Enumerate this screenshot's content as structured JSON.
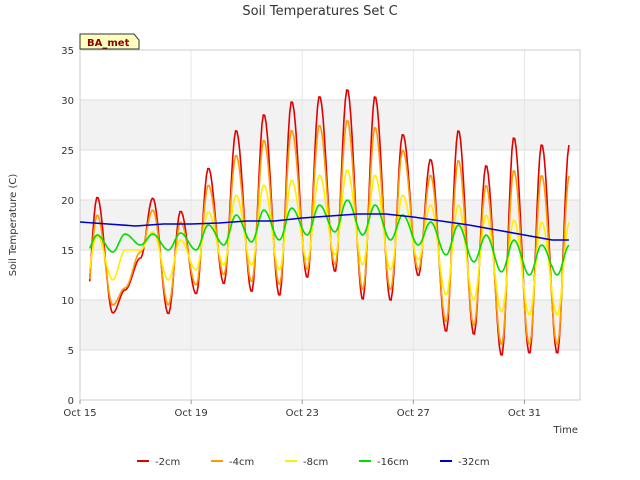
{
  "chart_data": {
    "type": "line",
    "title": "Soil Temperatures Set C",
    "xlabel": "Time",
    "ylabel": "Soil Temperature (C)",
    "ylim": [
      0,
      35
    ],
    "yticks": [
      "0",
      "5",
      "10",
      "15",
      "20",
      "25",
      "30",
      "35"
    ],
    "xlim_days": [
      0,
      18
    ],
    "xticks": [
      {
        "label": "Oct 15",
        "day": 0
      },
      {
        "label": "Oct 19",
        "day": 4
      },
      {
        "label": "Oct 23",
        "day": 8
      },
      {
        "label": "Oct 27",
        "day": 12
      },
      {
        "label": "Oct 31",
        "day": 16
      }
    ],
    "grid": true,
    "alternating_bands": true,
    "legend_position": "bottom",
    "site_badge": "BA_met",
    "series": [
      {
        "name": "-2cm",
        "color": "#e00000",
        "daily_max": [
          20.3,
          11.0,
          20.2,
          18.9,
          23.2,
          27.0,
          28.6,
          29.9,
          30.4,
          31.1,
          30.4,
          26.6,
          24.1,
          27.0,
          23.5,
          26.3,
          25.6
        ],
        "daily_min": [
          7.8,
          8.7,
          14.2,
          8.6,
          10.6,
          11.6,
          10.8,
          10.4,
          12.2,
          12.8,
          10.0,
          9.9,
          12.4,
          6.8,
          6.5,
          4.4,
          4.6
        ]
      },
      {
        "name": "-4cm",
        "color": "#ff9900",
        "daily_max": [
          18.5,
          11.2,
          19.0,
          17.8,
          21.5,
          24.5,
          26.0,
          27.0,
          27.5,
          28.0,
          27.3,
          25.0,
          22.5,
          24.0,
          21.5,
          23.0,
          22.5
        ],
        "daily_min": [
          9.0,
          9.5,
          14.8,
          9.5,
          11.5,
          12.5,
          11.8,
          11.5,
          13.0,
          13.5,
          11.0,
          11.0,
          13.0,
          7.8,
          7.4,
          5.5,
          5.5
        ]
      },
      {
        "name": "-8cm",
        "color": "#ffee00",
        "daily_max": [
          16.5,
          15.0,
          16.8,
          16.0,
          18.8,
          20.5,
          21.5,
          22.0,
          22.5,
          23.0,
          22.5,
          20.5,
          19.5,
          19.5,
          18.5,
          18.0,
          17.8
        ],
        "daily_min": [
          11.5,
          12.0,
          15.0,
          12.0,
          13.0,
          13.5,
          13.5,
          13.0,
          14.0,
          14.5,
          13.5,
          13.0,
          14.0,
          10.5,
          10.0,
          8.8,
          8.5
        ]
      },
      {
        "name": "-16cm",
        "color": "#00dd00",
        "daily_max": [
          16.5,
          16.6,
          16.6,
          16.7,
          17.5,
          18.5,
          19.0,
          19.2,
          19.5,
          20.0,
          19.5,
          18.5,
          17.8,
          17.5,
          16.5,
          16.0,
          15.5
        ],
        "daily_min": [
          14.5,
          14.8,
          15.5,
          15.0,
          15.0,
          15.5,
          15.8,
          16.0,
          16.5,
          16.8,
          16.5,
          16.0,
          15.5,
          14.5,
          13.8,
          12.8,
          12.5
        ]
      },
      {
        "name": "-32cm",
        "color": "#0000cc",
        "x": [
          0,
          1,
          2,
          3,
          4,
          5,
          6,
          7,
          8,
          9,
          10,
          11,
          12,
          13,
          14,
          15,
          16,
          17,
          17.6
        ],
        "y": [
          17.8,
          17.6,
          17.4,
          17.6,
          17.6,
          17.7,
          17.9,
          17.9,
          18.2,
          18.4,
          18.6,
          18.6,
          18.3,
          17.9,
          17.5,
          17.0,
          16.5,
          16.0,
          16.0
        ]
      }
    ]
  }
}
